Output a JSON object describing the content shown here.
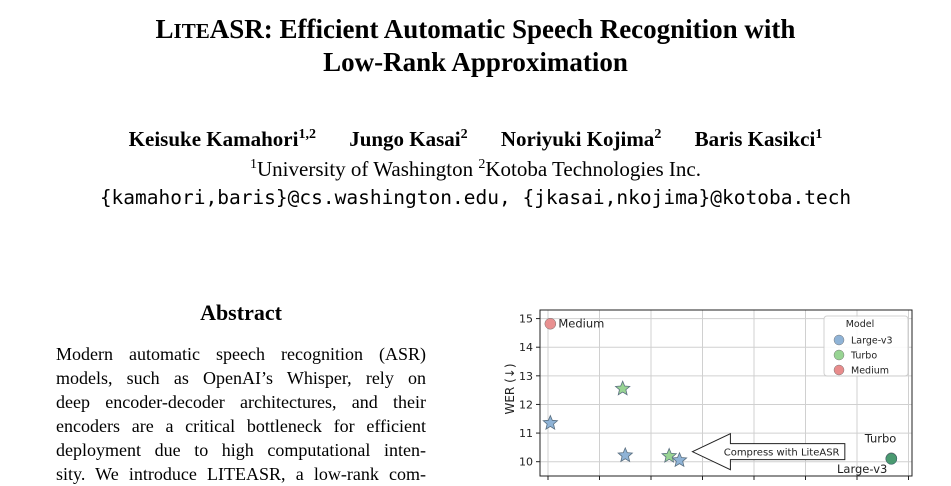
{
  "paper": {
    "title_line1_sc_L": "L",
    "title_line1_sc_rest": "ITE",
    "title_line1_main": "ASR: Efficient Automatic Speech Recognition with",
    "title_line2": "Low-Rank Approximation",
    "authors": [
      {
        "name": "Keisuke Kamahori",
        "sup": "1,2"
      },
      {
        "name": "Jungo Kasai",
        "sup": "2"
      },
      {
        "name": "Noriyuki Kojima",
        "sup": "2"
      },
      {
        "name": "Baris Kasikci",
        "sup": "1"
      }
    ],
    "affil_1_sup": "1",
    "affil_1": "University of Washington ",
    "affil_2_sup": "2",
    "affil_2": "Kotoba Technologies Inc.",
    "emails": "{kamahori,baris}@cs.washington.edu, {jkasai,nkojima}@kotoba.tech",
    "abstract_title": "Abstract",
    "abstract_lines": [
      "Modern automatic speech recognition (ASR)",
      "models, such as OpenAI’s Whisper, rely on",
      "deep encoder-decoder architectures, and their",
      "encoders are a critical bottleneck for efficient",
      "deployment due to high computational inten-",
      "sity. We introduce LITEASR, a low-rank com-"
    ]
  },
  "chart_data": {
    "type": "scatter",
    "ylabel": "WER (↓)",
    "ylim": [
      9.5,
      15.3
    ],
    "yticks": [
      10,
      11,
      12,
      13,
      14,
      15
    ],
    "legend_title": "Model",
    "legend_position": "top-right",
    "series": [
      {
        "name": "Large-v3",
        "color": "#8fb3d6"
      },
      {
        "name": "Turbo",
        "color": "#98d493"
      },
      {
        "name": "Medium",
        "color": "#e88c8c"
      }
    ],
    "points": [
      {
        "series": "Medium",
        "marker": "circle",
        "x": 0.0,
        "y": 14.82,
        "label": "Medium"
      },
      {
        "series": "Large-v3",
        "marker": "star",
        "x": 0.0,
        "y": 11.35
      },
      {
        "series": "Turbo",
        "marker": "star",
        "x": 1.4,
        "y": 12.55
      },
      {
        "series": "Large-v3",
        "marker": "star",
        "x": 1.45,
        "y": 10.22
      },
      {
        "series": "Turbo",
        "marker": "star",
        "x": 2.3,
        "y": 10.2
      },
      {
        "series": "Large-v3",
        "marker": "star",
        "x": 2.5,
        "y": 10.05
      },
      {
        "series": "Turbo",
        "marker": "circle",
        "x": 6.6,
        "y": 10.12,
        "label": "Turbo"
      },
      {
        "series": "Large-v3",
        "marker": "circle",
        "x": 6.6,
        "y": 10.1,
        "label": "Large-v3"
      }
    ],
    "xlim": [
      -0.2,
      7.0
    ],
    "arrow_annotation": "Compress with LiteASR",
    "grid": true
  }
}
